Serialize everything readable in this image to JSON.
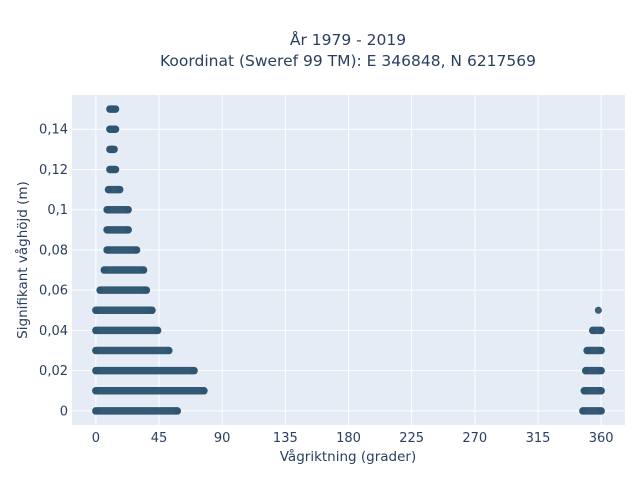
{
  "chart_data": {
    "type": "scatter",
    "title_lines": [
      "År 1979 - 2019",
      "Koordinat (Sweref 99 TM): E 346848, N 6217569"
    ],
    "xlabel": "Vågriktning (grader)",
    "ylabel": "Signifikant våghöjd (m)",
    "xlim": [
      -17,
      377
    ],
    "ylim": [
      -0.007,
      0.157
    ],
    "xticks": [
      0,
      45,
      90,
      135,
      180,
      225,
      270,
      315,
      360
    ],
    "xtick_labels": [
      "0",
      "45",
      "90",
      "135",
      "180",
      "225",
      "270",
      "315",
      "360"
    ],
    "yticks": [
      0,
      0.02,
      0.04,
      0.06,
      0.08,
      0.1,
      0.12,
      0.14
    ],
    "ytick_labels": [
      "0",
      "0,02",
      "0,04",
      "0,06",
      "0,08",
      "0,1",
      "0,12",
      "0,14"
    ],
    "grid": true,
    "marker_color": "#2e5570",
    "series": [
      {
        "values": [
          {
            "y": 0.0,
            "x": [
              0,
              58
            ]
          },
          {
            "y": 0.01,
            "x": [
              0,
              77
            ]
          },
          {
            "y": 0.02,
            "x": [
              0,
              70
            ]
          },
          {
            "y": 0.03,
            "x": [
              0,
              52
            ]
          },
          {
            "y": 0.04,
            "x": [
              0,
              44
            ]
          },
          {
            "y": 0.05,
            "x": [
              0,
              40
            ]
          },
          {
            "y": 0.06,
            "x": [
              3,
              36
            ]
          },
          {
            "y": 0.07,
            "x": [
              6,
              34
            ]
          },
          {
            "y": 0.08,
            "x": [
              8,
              29
            ]
          },
          {
            "y": 0.09,
            "x": [
              8,
              23
            ]
          },
          {
            "y": 0.1,
            "x": [
              8,
              23
            ]
          },
          {
            "y": 0.11,
            "x": [
              9,
              17
            ]
          },
          {
            "y": 0.12,
            "x": [
              10,
              14
            ]
          },
          {
            "y": 0.13,
            "x": [
              10,
              13
            ]
          },
          {
            "y": 0.14,
            "x": [
              10,
              14
            ]
          },
          {
            "y": 0.15,
            "x": [
              10,
              14
            ]
          },
          {
            "y": 0.0,
            "x": [
              347,
              360
            ]
          },
          {
            "y": 0.01,
            "x": [
              348,
              360
            ]
          },
          {
            "y": 0.02,
            "x": [
              349,
              360
            ]
          },
          {
            "y": 0.03,
            "x": [
              350,
              360
            ]
          },
          {
            "y": 0.04,
            "x": [
              354,
              360
            ]
          },
          {
            "y": 0.05,
            "x": [
              358,
              358
            ]
          }
        ]
      }
    ]
  }
}
